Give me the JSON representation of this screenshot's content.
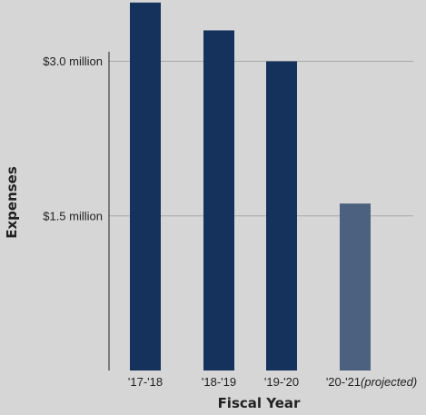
{
  "chart_data": {
    "type": "bar",
    "title": "",
    "xlabel": "Fiscal Year",
    "ylabel": "Expenses",
    "categories": [
      {
        "label": "'17-'18",
        "suffix": ""
      },
      {
        "label": "'18-'19",
        "suffix": ""
      },
      {
        "label": "'19-'20",
        "suffix": ""
      },
      {
        "label": "'20-'21",
        "suffix": "(projected)"
      }
    ],
    "values": [
      3.57,
      3.3,
      3.0,
      1.62
    ],
    "projected": [
      false,
      false,
      false,
      true
    ],
    "ylim": [
      0,
      3.57
    ],
    "yticks": [
      {
        "value": 1.5,
        "label": "$1.5 million"
      },
      {
        "value": 3.0,
        "label": "$3.0 million"
      }
    ],
    "grid": true,
    "legend": "none",
    "colors": {
      "bar": "#15325d",
      "bar_projected": "#4c6180",
      "grid": "#a9a9a9",
      "axis": "#222222",
      "background": "#d6d6d6"
    }
  }
}
